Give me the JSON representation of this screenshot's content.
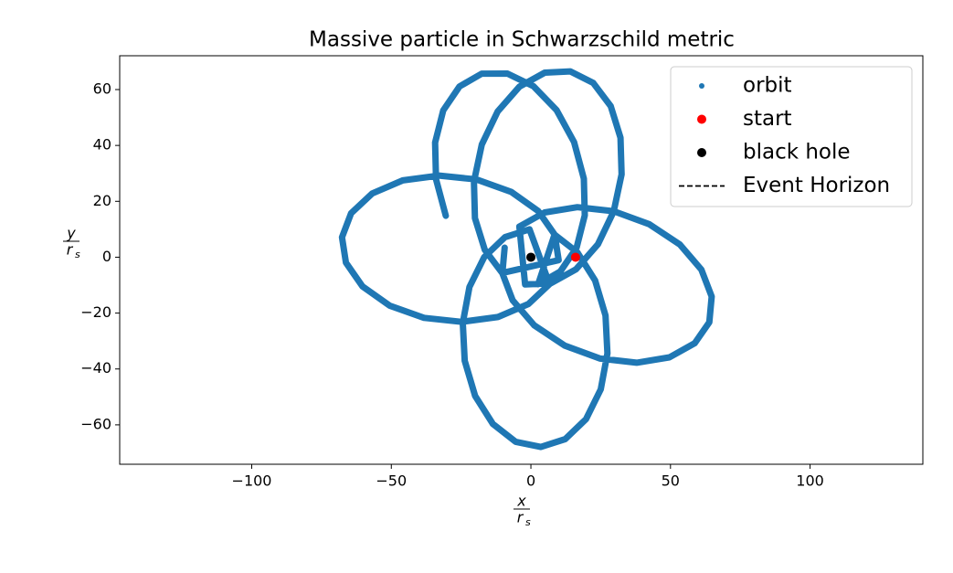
{
  "chart_data": {
    "type": "line",
    "title": "Massive particle in Schwarzschild metric",
    "xlabel": {
      "numerator": "x",
      "denominator": "r",
      "subscript": "s"
    },
    "ylabel": {
      "numerator": "y",
      "denominator": "r",
      "subscript": "s"
    },
    "xlim": [
      -147.3,
      140.4
    ],
    "ylim": [
      -74.1,
      72.1
    ],
    "xticks": [
      {
        "value": -100,
        "label": "−100"
      },
      {
        "value": -50,
        "label": "−50"
      },
      0,
      50,
      100
    ],
    "yticks": [
      {
        "value": -60,
        "label": "−60"
      },
      {
        "value": -40,
        "label": "−40"
      },
      {
        "value": -20,
        "label": "−20"
      },
      0,
      20,
      40,
      60
    ],
    "grid": false,
    "legend": "upper right",
    "series": [
      {
        "name": "orbit",
        "color": "#1f77b4",
        "marker": "dot",
        "x": [
          -9.4,
          -10.23,
          -6.53,
          1.23,
          12.14,
          24.86,
          37.89,
          49.63,
          58.67,
          63.92,
          64.75,
          61.05,
          53.29,
          42.38,
          29.66,
          16.63,
          4.89,
          -4.15,
          -2.08,
          7.1,
          16.16,
          24,
          29.66,
          32.48,
          32.11,
          28.58,
          22.35,
          14.14,
          4.97,
          -4.1,
          -11.93,
          -17.6,
          -20.42,
          -20.04,
          -16.52,
          -10.28,
          9.95,
          8.54,
          2.62,
          -7.09,
          -19.43,
          -32.9,
          -45.9,
          -56.83,
          -64.39,
          -67.66,
          -66.25,
          -60.33,
          -50.62,
          -38.28,
          -24.81,
          -11.81,
          -0.88,
          6.68,
          -0.52,
          -9.28,
          -16.74,
          -22.01,
          -24.41,
          -23.71,
          -19.98,
          -13.63,
          -5.47,
          3.54,
          12.29,
          19.75,
          25.02,
          27.43,
          26.73,
          22.99,
          16.64,
          8.48,
          2.59,
          10.57,
          16.37,
          19.29,
          18.97,
          15.47,
          9.19,
          0.89,
          -8.41,
          -17.61,
          -25.59,
          -31.39,
          -34.31,
          -33.99,
          -30.49
        ],
        "y": [
          3.42,
          -5.74,
          -15.41,
          -24.42,
          -31.66,
          -36.29,
          -37.76,
          -35.84,
          -30.81,
          -23.26,
          -14.09,
          -4.42,
          4.58,
          11.83,
          16.46,
          17.92,
          16.01,
          10.98,
          -9.78,
          -9.33,
          -4.33,
          4.61,
          16.42,
          29.66,
          42.75,
          54.09,
          62.36,
          66.5,
          66.06,
          61.05,
          52.11,
          40.3,
          27.06,
          13.97,
          2.63,
          -5.63,
          -1.05,
          8.05,
          16.54,
          23.41,
          27.8,
          29.23,
          27.5,
          22.81,
          15.74,
          7.14,
          -1.96,
          -10.45,
          -17.32,
          -21.71,
          -23.14,
          -21.41,
          -16.72,
          -9.65,
          9.99,
          7.18,
          0,
          -10.66,
          -23.54,
          -37.06,
          -49.62,
          -59.68,
          -66.04,
          -67.93,
          -65.12,
          -57.94,
          -47.28,
          -34.4,
          -20.88,
          -8.32,
          1.74,
          8.1,
          -9.66,
          -5.09,
          3.49,
          15.01,
          28.1,
          41.18,
          52.68,
          61.2,
          65.72,
          65.69,
          61.12,
          52.54,
          41.02,
          27.92,
          14.84
        ]
      },
      {
        "name": "start",
        "color": "red",
        "marker": "dot",
        "x": [
          16
        ],
        "y": [
          0
        ]
      },
      {
        "name": "black hole",
        "color": "black",
        "marker": "dot",
        "x": [
          0
        ],
        "y": [
          0
        ]
      },
      {
        "name": "Event Horizon",
        "color": "black",
        "marker": "dashed",
        "radius": 1
      }
    ]
  }
}
